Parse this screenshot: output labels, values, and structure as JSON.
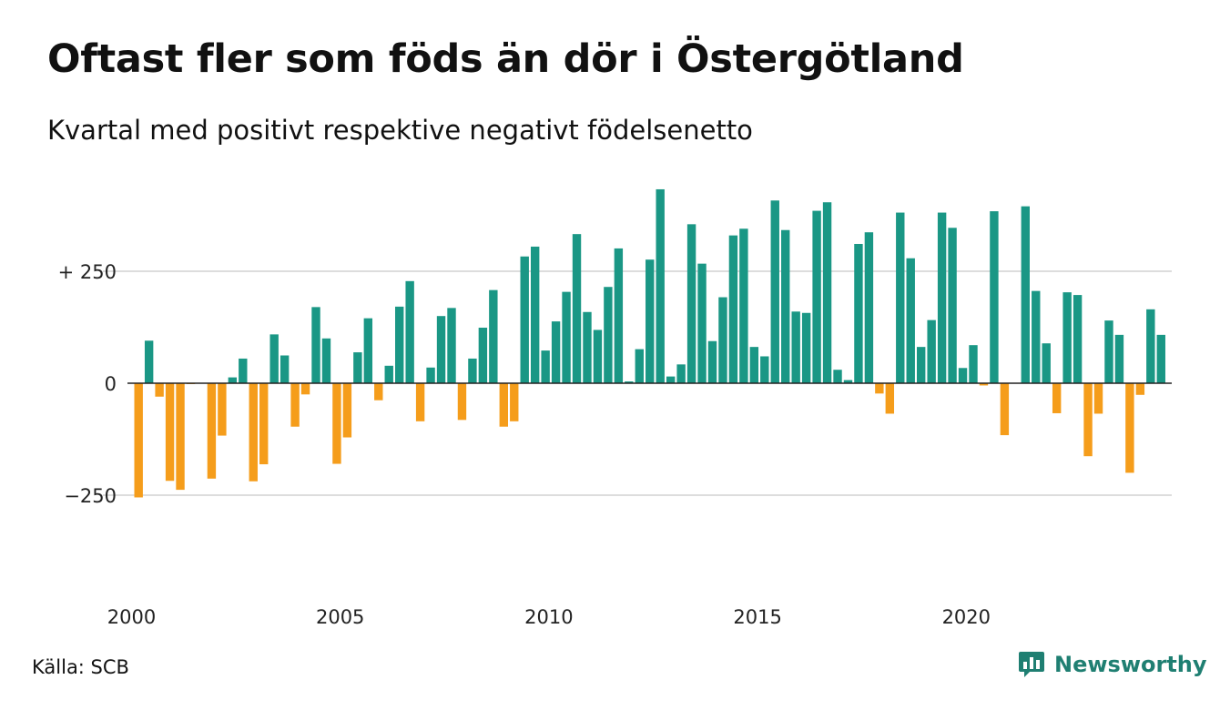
{
  "header": {
    "title": "Oftast fler som föds än dör i Östergötland",
    "subtitle": "Kvartal med positivt respektive negativt födelsenetto"
  },
  "footer": {
    "source": "Källa: SCB",
    "logo_text": "Newsworthy",
    "logo_icon": "bar-chart-logo-icon"
  },
  "colors": {
    "positive": "#1a9785",
    "negative": "#f59d1b",
    "grid": "#dddddd",
    "logo": "#1f7f72"
  },
  "chart_data": {
    "type": "bar",
    "ylim": [
      -360,
      430
    ],
    "yticks": [
      {
        "value": 250,
        "label": "+ 250"
      },
      {
        "value": 0,
        "label": "0"
      },
      {
        "value": -250,
        "label": "−250"
      }
    ],
    "xtick_labels": [
      "2000",
      "2005",
      "2010",
      "2015",
      "2020"
    ],
    "grid": true,
    "series": [
      {
        "values": [
          -255,
          95,
          -30,
          -218,
          -238,
          -2,
          0,
          -213,
          -117,
          13,
          55,
          -219,
          -181,
          109,
          62,
          -97,
          -25,
          170,
          100,
          -180,
          -121,
          69,
          145,
          -38,
          39,
          171,
          228,
          -85,
          35,
          150,
          168,
          -82,
          55,
          124,
          208,
          -97,
          -85,
          283,
          305,
          73,
          138,
          204,
          333,
          159,
          119,
          215,
          301,
          4,
          76,
          276,
          433,
          15,
          42,
          355,
          267,
          94,
          192,
          330,
          345,
          81,
          60,
          408,
          342,
          160,
          157,
          385,
          404,
          30,
          7,
          311,
          337,
          -23,
          -68,
          381,
          279,
          81,
          141,
          381,
          347,
          34,
          85,
          -5,
          384,
          -116,
          0,
          395,
          206,
          89,
          -67,
          203,
          197,
          -163,
          -68,
          140,
          108,
          -200,
          -26,
          165,
          108
        ]
      }
    ]
  }
}
